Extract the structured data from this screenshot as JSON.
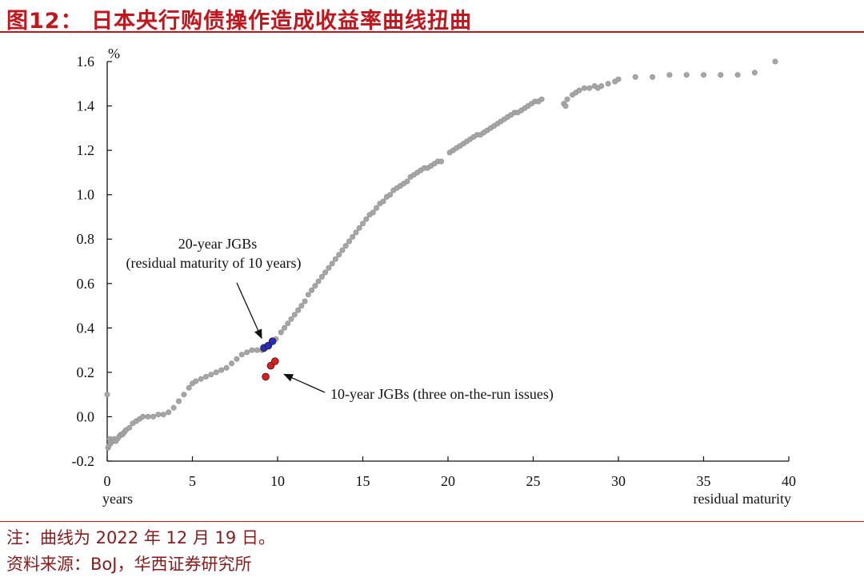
{
  "figure": {
    "title": "图12： 日本央行购债操作造成收益率曲线扭曲",
    "note": "注：曲线为 2022 年 12 月 19 日。",
    "source": "资料来源：BoJ，华西证券研究所"
  },
  "chart_data": {
    "type": "scatter",
    "title": "",
    "ylabel": "%",
    "xlabel_left": "years",
    "xlabel_right": "residual  maturity",
    "xlim": [
      0,
      40
    ],
    "ylim": [
      -0.2,
      1.6
    ],
    "x_ticks": [
      0,
      5,
      10,
      15,
      20,
      25,
      30,
      35,
      40
    ],
    "y_ticks": [
      -0.2,
      0.0,
      0.2,
      0.4,
      0.6,
      0.8,
      1.0,
      1.2,
      1.4,
      1.6
    ],
    "y_tick_labels": [
      "-0.2",
      "0.0",
      "0.2",
      "0.4",
      "0.6",
      "0.8",
      "1.0",
      "1.2",
      "1.4",
      "1.6"
    ],
    "grid": false,
    "colors": {
      "curve": "#a6a6a6",
      "twenty_year": "#1f2fbf",
      "ten_year": "#d81e1e"
    },
    "annotations": [
      {
        "line1": "20-year JGBs",
        "line2": "(residual  maturity  of  10 years)",
        "target": [
          9.3,
          0.31
        ]
      },
      {
        "line1": "10-year JGBs (three on-the-run issues)",
        "target": [
          10.0,
          0.22
        ]
      }
    ],
    "series": [
      {
        "role": "curve",
        "points": [
          [
            0.0,
            0.1
          ],
          [
            0.05,
            -0.14
          ],
          [
            0.1,
            -0.13
          ],
          [
            0.15,
            -0.1
          ],
          [
            0.2,
            -0.12
          ],
          [
            0.3,
            -0.11
          ],
          [
            0.4,
            -0.1
          ],
          [
            0.5,
            -0.11
          ],
          [
            0.6,
            -0.1
          ],
          [
            0.7,
            -0.09
          ],
          [
            0.8,
            -0.08
          ],
          [
            0.9,
            -0.08
          ],
          [
            1.0,
            -0.07
          ],
          [
            1.1,
            -0.06
          ],
          [
            1.3,
            -0.05
          ],
          [
            1.5,
            -0.03
          ],
          [
            1.7,
            -0.02
          ],
          [
            1.9,
            -0.01
          ],
          [
            2.1,
            0.0
          ],
          [
            2.4,
            0.0
          ],
          [
            2.7,
            0.0
          ],
          [
            3.0,
            0.01
          ],
          [
            3.3,
            0.01
          ],
          [
            3.6,
            0.02
          ],
          [
            3.9,
            0.04
          ],
          [
            4.2,
            0.07
          ],
          [
            4.5,
            0.1
          ],
          [
            4.8,
            0.13
          ],
          [
            5.0,
            0.15
          ],
          [
            5.2,
            0.16
          ],
          [
            5.5,
            0.17
          ],
          [
            5.8,
            0.18
          ],
          [
            6.1,
            0.19
          ],
          [
            6.4,
            0.2
          ],
          [
            6.7,
            0.21
          ],
          [
            7.0,
            0.22
          ],
          [
            7.3,
            0.24
          ],
          [
            7.6,
            0.26
          ],
          [
            7.9,
            0.28
          ],
          [
            8.2,
            0.29
          ],
          [
            8.5,
            0.3
          ],
          [
            8.8,
            0.3
          ],
          [
            9.1,
            0.3
          ],
          [
            9.9,
            0.35
          ],
          [
            10.2,
            0.38
          ],
          [
            10.4,
            0.4
          ],
          [
            10.6,
            0.42
          ],
          [
            10.8,
            0.44
          ],
          [
            11.0,
            0.46
          ],
          [
            11.2,
            0.48
          ],
          [
            11.4,
            0.5
          ],
          [
            11.6,
            0.52
          ],
          [
            11.8,
            0.55
          ],
          [
            12.0,
            0.57
          ],
          [
            12.2,
            0.59
          ],
          [
            12.4,
            0.61
          ],
          [
            12.6,
            0.63
          ],
          [
            12.8,
            0.65
          ],
          [
            13.0,
            0.67
          ],
          [
            13.2,
            0.69
          ],
          [
            13.4,
            0.71
          ],
          [
            13.6,
            0.73
          ],
          [
            13.8,
            0.75
          ],
          [
            14.0,
            0.77
          ],
          [
            14.2,
            0.79
          ],
          [
            14.4,
            0.81
          ],
          [
            14.6,
            0.83
          ],
          [
            14.8,
            0.85
          ],
          [
            15.0,
            0.87
          ],
          [
            15.2,
            0.89
          ],
          [
            15.4,
            0.91
          ],
          [
            15.6,
            0.92
          ],
          [
            15.8,
            0.94
          ],
          [
            16.0,
            0.96
          ],
          [
            16.2,
            0.97
          ],
          [
            16.4,
            0.99
          ],
          [
            16.6,
            1.0
          ],
          [
            16.8,
            1.02
          ],
          [
            17.0,
            1.03
          ],
          [
            17.2,
            1.04
          ],
          [
            17.4,
            1.05
          ],
          [
            17.6,
            1.06
          ],
          [
            17.8,
            1.08
          ],
          [
            18.0,
            1.09
          ],
          [
            18.2,
            1.1
          ],
          [
            18.4,
            1.11
          ],
          [
            18.6,
            1.12
          ],
          [
            18.8,
            1.12
          ],
          [
            19.0,
            1.13
          ],
          [
            19.2,
            1.14
          ],
          [
            19.4,
            1.15
          ],
          [
            19.6,
            1.15
          ],
          [
            20.1,
            1.19
          ],
          [
            20.3,
            1.2
          ],
          [
            20.5,
            1.21
          ],
          [
            20.7,
            1.22
          ],
          [
            20.9,
            1.23
          ],
          [
            21.1,
            1.24
          ],
          [
            21.3,
            1.25
          ],
          [
            21.5,
            1.26
          ],
          [
            21.7,
            1.27
          ],
          [
            21.9,
            1.27
          ],
          [
            22.1,
            1.28
          ],
          [
            22.3,
            1.29
          ],
          [
            22.5,
            1.3
          ],
          [
            22.7,
            1.31
          ],
          [
            22.9,
            1.32
          ],
          [
            23.1,
            1.33
          ],
          [
            23.3,
            1.34
          ],
          [
            23.5,
            1.35
          ],
          [
            23.7,
            1.36
          ],
          [
            23.9,
            1.37
          ],
          [
            24.1,
            1.37
          ],
          [
            24.3,
            1.38
          ],
          [
            24.5,
            1.39
          ],
          [
            24.7,
            1.4
          ],
          [
            24.9,
            1.41
          ],
          [
            25.1,
            1.42
          ],
          [
            25.3,
            1.42
          ],
          [
            25.5,
            1.43
          ],
          [
            26.8,
            1.41
          ],
          [
            26.9,
            1.4
          ],
          [
            27.0,
            1.43
          ],
          [
            27.3,
            1.45
          ],
          [
            27.5,
            1.46
          ],
          [
            27.7,
            1.47
          ],
          [
            28.0,
            1.48
          ],
          [
            28.3,
            1.48
          ],
          [
            28.6,
            1.49
          ],
          [
            28.8,
            1.48
          ],
          [
            29.0,
            1.49
          ],
          [
            29.4,
            1.5
          ],
          [
            29.8,
            1.51
          ],
          [
            30.0,
            1.52
          ],
          [
            31.0,
            1.53
          ],
          [
            32.0,
            1.53
          ],
          [
            33.0,
            1.54
          ],
          [
            34.0,
            1.54
          ],
          [
            35.0,
            1.54
          ],
          [
            36.0,
            1.54
          ],
          [
            37.0,
            1.54
          ],
          [
            38.0,
            1.55
          ],
          [
            39.2,
            1.6
          ]
        ]
      },
      {
        "role": "twenty_year",
        "label": "20-year JGBs",
        "points": [
          [
            9.2,
            0.31
          ],
          [
            9.45,
            0.32
          ],
          [
            9.7,
            0.34
          ]
        ]
      },
      {
        "role": "ten_year",
        "label": "10-year JGBs",
        "points": [
          [
            9.3,
            0.18
          ],
          [
            9.6,
            0.23
          ],
          [
            9.85,
            0.25
          ]
        ]
      }
    ]
  }
}
